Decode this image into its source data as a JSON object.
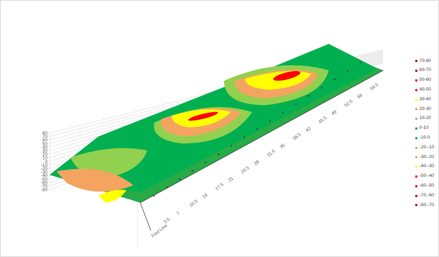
{
  "chart_data": {
    "type": "surface",
    "title": "",
    "axes": {
      "z_ticks": [
        "80",
        "70",
        "60",
        "50",
        "40",
        "30",
        "20",
        "10",
        "0",
        "-10",
        "-20",
        "-30",
        "-40",
        "-50",
        "-60",
        "-70",
        "-80"
      ],
      "x_ticks": [
        "3.5",
        "7",
        "10.5",
        "14",
        "17.5",
        "21",
        "24.5",
        "28",
        "31.5",
        "35",
        "38.5",
        "42",
        "45.5",
        "49",
        "52.5",
        "56",
        "59.5"
      ],
      "x_label": "Foul Line",
      "z_range": [
        -80,
        80
      ]
    },
    "legend": {
      "position": "right",
      "entries": [
        {
          "label": "70-80",
          "color": "#c00000"
        },
        {
          "label": "60-70",
          "color": "#c00000"
        },
        {
          "label": "50-60",
          "color": "#e00000"
        },
        {
          "label": "40-50",
          "color": "#ff0000"
        },
        {
          "label": "30-40",
          "color": "#ffff00"
        },
        {
          "label": "20-30",
          "color": "#f4a460"
        },
        {
          "label": "10-20",
          "color": "#92d050"
        },
        {
          "label": "0-10",
          "color": "#00b050"
        },
        {
          "label": "-10-0",
          "color": "#00b050"
        },
        {
          "label": "-20--10",
          "color": "#92d050"
        },
        {
          "label": "-30--20",
          "color": "#f4a460"
        },
        {
          "label": "-40--30",
          "color": "#ffff00"
        },
        {
          "label": "-50--40",
          "color": "#ff0000"
        },
        {
          "label": "-60--50",
          "color": "#e00000"
        },
        {
          "label": "-70--60",
          "color": "#c00000"
        },
        {
          "label": "-80--70",
          "color": "#c00000"
        }
      ]
    },
    "peaks": [
      {
        "x": 45.5,
        "value": 45
      },
      {
        "x": 24.5,
        "value": 42
      },
      {
        "x": 12,
        "value": -35
      }
    ]
  }
}
